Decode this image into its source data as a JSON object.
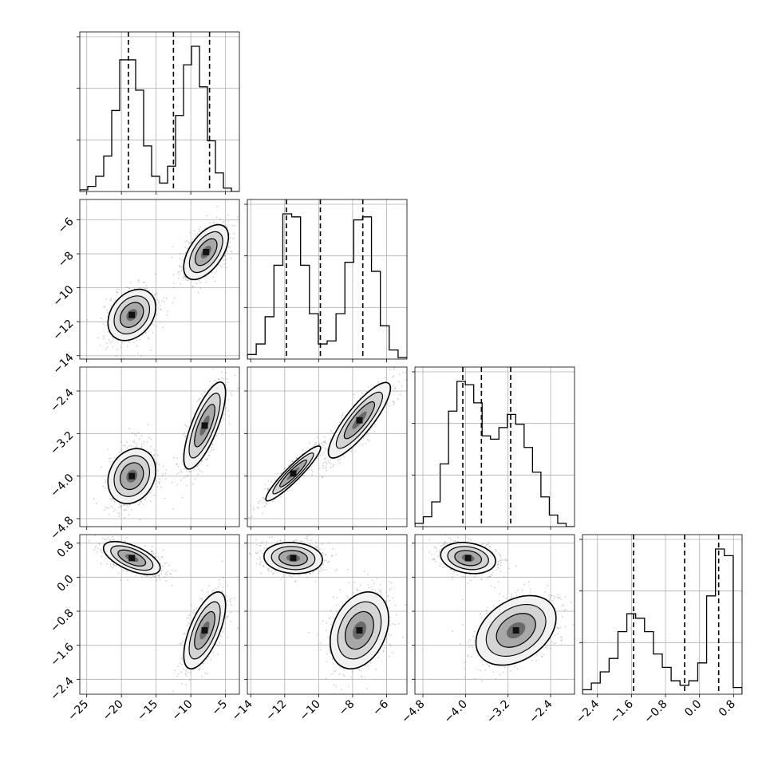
{
  "chart_data": {
    "type": "corner",
    "n_params": 4,
    "parameters": [
      {
        "name": "",
        "range": [
          -26,
          -3
        ],
        "ticks": [
          -25,
          -20,
          -15,
          -10,
          -5
        ],
        "tick_labels": [
          "−25",
          "−20",
          "−15",
          "−10",
          "−5"
        ],
        "quantiles": [
          -19.0,
          -12.5,
          -7.3
        ]
      },
      {
        "name": "",
        "range": [
          -14.2,
          -4.8
        ],
        "ticks": [
          -14,
          -12,
          -10,
          -8,
          -6
        ],
        "tick_labels": [
          "−14",
          "−12",
          "−10",
          "−8",
          "−6"
        ],
        "quantiles": [
          -11.9,
          -9.9,
          -7.4
        ]
      },
      {
        "name": "",
        "range": [
          -4.95,
          -1.95
        ],
        "ticks": [
          -4.8,
          -4.0,
          -3.2,
          -2.4
        ],
        "tick_labels": [
          "−4.8",
          "−4.0",
          "−3.2",
          "−2.4"
        ],
        "quantiles": [
          -4.05,
          -3.7,
          -3.15
        ]
      },
      {
        "name": "",
        "range": [
          -2.75,
          1.0
        ],
        "ticks": [
          -2.4,
          -1.6,
          -0.8,
          0.0,
          0.8
        ],
        "tick_labels": [
          "−2.4",
          "−1.6",
          "−0.8",
          "0.0",
          "0.8"
        ],
        "quantiles": [
          -1.55,
          -0.35,
          0.45
        ]
      }
    ],
    "histograms": [
      {
        "param": 0,
        "counts": [
          1,
          3,
          9,
          21,
          48,
          78,
          78,
          60,
          27,
          9,
          5,
          15,
          45,
          75,
          86,
          62,
          30,
          11,
          2,
          0
        ]
      },
      {
        "param": 1,
        "counts": [
          3,
          10,
          28,
          62,
          96,
          94,
          62,
          30,
          10,
          12,
          30,
          64,
          92,
          94,
          58,
          22,
          6,
          1
        ]
      },
      {
        "param": 2,
        "counts": [
          2,
          6,
          15,
          38,
          70,
          88,
          86,
          75,
          55,
          53,
          60,
          68,
          62,
          48,
          33,
          18,
          7,
          2,
          0
        ]
      },
      {
        "param": 3,
        "counts": [
          2,
          5,
          10,
          16,
          28,
          36,
          34,
          28,
          18,
          12,
          6,
          4,
          6,
          14,
          44,
          65,
          62,
          3
        ]
      }
    ],
    "modes_2d": [
      {
        "x_param": 0,
        "y_param": 1,
        "clusters": [
          {
            "center": [
              -18.5,
              -11.6
            ],
            "sigma": [
              1.6,
              0.7
            ],
            "corr": 0.3
          },
          {
            "center": [
              -7.8,
              -7.9
            ],
            "sigma": [
              1.5,
              0.75
            ],
            "corr": 0.55
          }
        ]
      },
      {
        "x_param": 0,
        "y_param": 2,
        "clusters": [
          {
            "center": [
              -18.5,
              -4.0
            ],
            "sigma": [
              1.6,
              0.24
            ],
            "corr": 0.2
          },
          {
            "center": [
              -8.0,
              -3.05
            ],
            "sigma": [
              1.4,
              0.38
            ],
            "corr": 0.75
          }
        ]
      },
      {
        "x_param": 0,
        "y_param": 3,
        "clusters": [
          {
            "center": [
              -18.5,
              0.45
            ],
            "sigma": [
              1.9,
              0.18
            ],
            "corr": -0.6
          },
          {
            "center": [
              -8.0,
              -1.25
            ],
            "sigma": [
              1.4,
              0.42
            ],
            "corr": 0.65
          }
        ]
      },
      {
        "x_param": 1,
        "y_param": 2,
        "clusters": [
          {
            "center": [
              -11.5,
              -3.95
            ],
            "sigma": [
              0.75,
              0.24
            ],
            "corr": 0.93
          },
          {
            "center": [
              -7.6,
              -2.95
            ],
            "sigma": [
              0.85,
              0.33
            ],
            "corr": 0.85
          }
        ]
      },
      {
        "x_param": 1,
        "y_param": 3,
        "clusters": [
          {
            "center": [
              -11.5,
              0.45
            ],
            "sigma": [
              0.8,
              0.17
            ],
            "corr": -0.1
          },
          {
            "center": [
              -7.6,
              -1.25
            ],
            "sigma": [
              0.8,
              0.42
            ],
            "corr": 0.3
          }
        ]
      },
      {
        "x_param": 2,
        "y_param": 3,
        "clusters": [
          {
            "center": [
              -3.95,
              0.45
            ],
            "sigma": [
              0.24,
              0.17
            ],
            "corr": -0.2
          },
          {
            "center": [
              -3.05,
              -1.25
            ],
            "sigma": [
              0.35,
              0.38
            ],
            "corr": 0.35
          }
        ]
      }
    ],
    "grid": true,
    "colors": {
      "line": "#000000",
      "scatter": "#777777",
      "grid": "#b0b0b0"
    }
  }
}
